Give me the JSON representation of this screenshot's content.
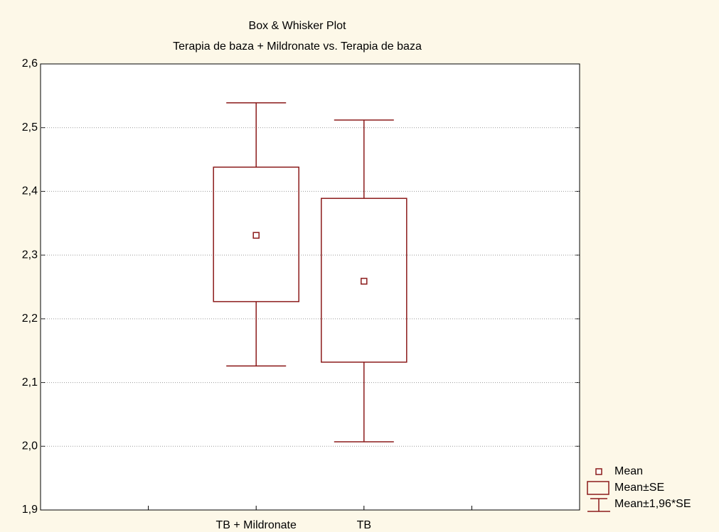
{
  "chart_data": {
    "type": "box",
    "title": "Box & Whisker Plot",
    "subtitle": "Terapia de baza + Mildronate vs. Terapia de baza",
    "categories": [
      null,
      "TB + Mildronate",
      "TB",
      null
    ],
    "mean": [
      null,
      2.331,
      2.259,
      null
    ],
    "box_low": [
      null,
      2.227,
      2.132,
      null
    ],
    "box_high": [
      null,
      2.438,
      2.389,
      null
    ],
    "whisker_low": [
      null,
      2.126,
      2.007,
      null
    ],
    "whisker_high": [
      null,
      2.539,
      2.512,
      null
    ],
    "color": "#8b1a1a",
    "ylim": [
      1.9,
      2.6
    ],
    "yticks": [
      {
        "value": 1.9,
        "label": "1,9"
      },
      {
        "value": 2.0,
        "label": "2,0"
      },
      {
        "value": 2.1,
        "label": "2,1"
      },
      {
        "value": 2.2,
        "label": "2,2"
      },
      {
        "value": 2.3,
        "label": "2,3"
      },
      {
        "value": 2.4,
        "label": "2,4"
      },
      {
        "value": 2.5,
        "label": "2,5"
      },
      {
        "value": 2.6,
        "label": "2,6"
      }
    ],
    "grid": true,
    "legend": [
      "Mean",
      "Mean±SE",
      "Mean±1,96*SE"
    ],
    "legend_position": "lower right"
  }
}
